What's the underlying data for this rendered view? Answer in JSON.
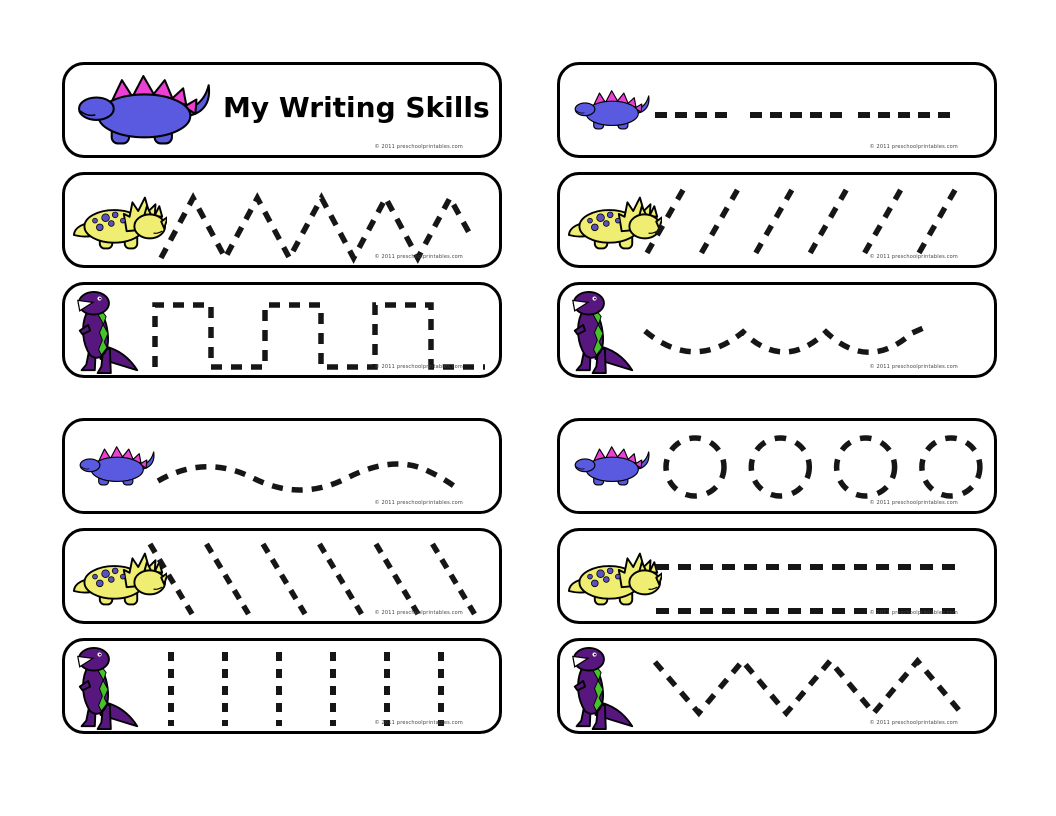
{
  "title": "My Writing Skills",
  "copyright": "© 2011 preschoolprintables.com",
  "colors": {
    "page_background": "#ffffff",
    "card_border": "#000000",
    "dash": "#161616",
    "outline": "#000000",
    "title_color": "#000000",
    "copyright_color": "#444444",
    "stegosaurus_body": "#5a5ae0",
    "stegosaurus_spikes": "#ec3fd3",
    "triceratops_body": "#f0ee72",
    "triceratops_spots": "#5b50c0",
    "trex_body": "#58177f",
    "trex_stripe": "#46c32a"
  },
  "cards": [
    {
      "id": "title",
      "side": "left",
      "row": 1,
      "dino": "stegosaurus",
      "dino_variant": "large",
      "pattern": "title"
    },
    {
      "id": "zigzag-peaks",
      "side": "left",
      "row": 2,
      "dino": "triceratops",
      "pattern": "zigzag_peaks",
      "peaks": 5
    },
    {
      "id": "square-wave",
      "side": "left",
      "row": 3,
      "dino": "trex",
      "pattern": "square_wave",
      "towers": 3
    },
    {
      "id": "wavy-line",
      "side": "left",
      "row": 4,
      "dino": "stegosaurus",
      "pattern": "sine_wave",
      "crests": 2
    },
    {
      "id": "diagonal-left-lines",
      "side": "left",
      "row": 5,
      "dino": "triceratops",
      "pattern": "diagonal_back",
      "count": 6
    },
    {
      "id": "vertical-lines",
      "side": "left",
      "row": 6,
      "dino": "trex",
      "pattern": "vertical_lines",
      "count": 6
    },
    {
      "id": "horizontal-dash-groups",
      "side": "right",
      "row": 1,
      "dino": "stegosaurus",
      "pattern": "dash_groups",
      "groups": 3
    },
    {
      "id": "diagonal-right-lines",
      "side": "right",
      "row": 2,
      "dino": "triceratops",
      "pattern": "diagonal_forward",
      "count": 6
    },
    {
      "id": "scallop-wave",
      "side": "right",
      "row": 3,
      "dino": "trex",
      "pattern": "scallop_wave",
      "scallops": 3
    },
    {
      "id": "dashed-circles",
      "side": "right",
      "row": 4,
      "dino": "stegosaurus",
      "pattern": "dashed_circles",
      "count": 4
    },
    {
      "id": "double-dashed-lines",
      "side": "right",
      "row": 5,
      "dino": "triceratops",
      "pattern": "double_lines",
      "count": 2
    },
    {
      "id": "zigzag-valleys",
      "side": "right",
      "row": 6,
      "dino": "trex",
      "pattern": "zigzag_valleys",
      "valleys": 4
    }
  ]
}
